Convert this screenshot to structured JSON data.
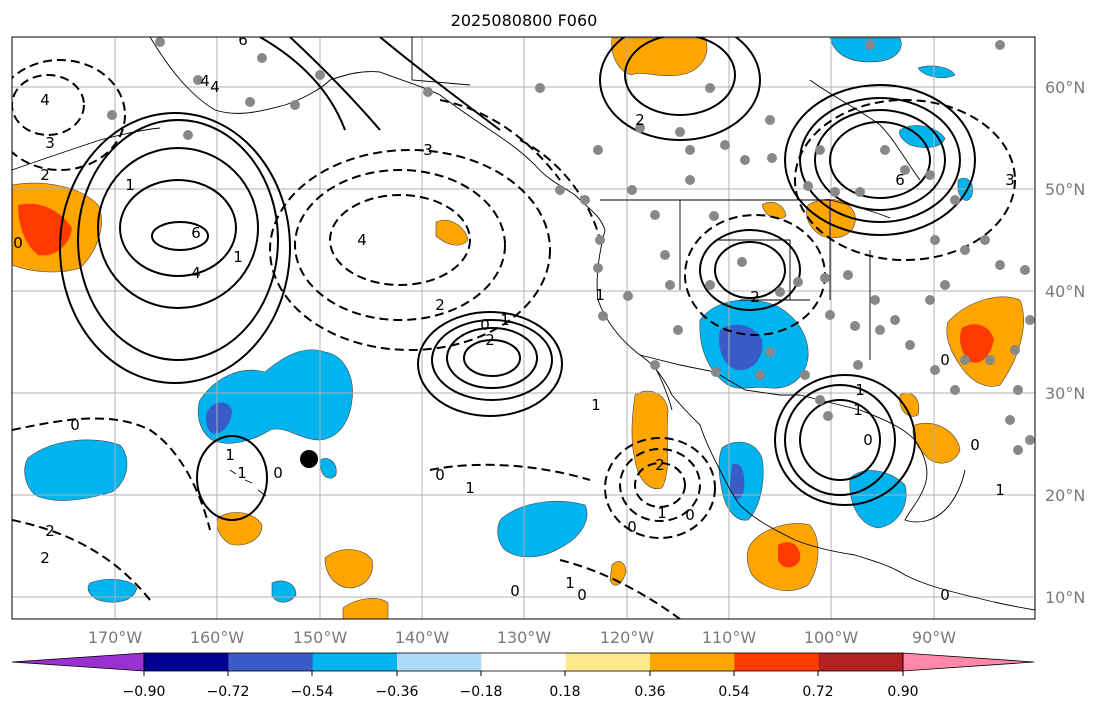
{
  "title": "2025080800 F060",
  "map": {
    "lat_labels": [
      "60°N",
      "50°N",
      "40°N",
      "30°N",
      "20°N",
      "10°N"
    ],
    "lon_labels": [
      "170°W",
      "160°W",
      "150°W",
      "140°W",
      "130°W",
      "120°W",
      "110°W",
      "100°W",
      "90°W"
    ],
    "contour_labels": [
      "6",
      "4",
      "3",
      "2",
      "1",
      "0",
      "6",
      "4",
      "1",
      "4",
      "3",
      "4",
      "2",
      "0",
      "2",
      "1",
      "0",
      "1",
      "2",
      "1",
      "2",
      "0",
      "1",
      "0",
      "2",
      "1",
      "0",
      "1",
      "1",
      "0",
      "0",
      "3",
      "6",
      "0",
      "1",
      "1",
      "0",
      "2",
      "2",
      "1",
      "1",
      "0",
      "0",
      "0",
      "4"
    ],
    "colors": {
      "neg_strong": "#3a5cc8",
      "neg_medium": "#00b4f0",
      "pos_medium": "#ffa500",
      "pos_strong": "#ff3a00",
      "station_marker": "#888888",
      "grid": "#b0b0b0"
    }
  },
  "colorbar": {
    "ticks": [
      "−0.90",
      "−0.72",
      "−0.54",
      "−0.36",
      "−0.18",
      "0.18",
      "0.36",
      "0.54",
      "0.72",
      "0.90"
    ],
    "segments": [
      "#9b30d0",
      "#000090",
      "#3a5cc8",
      "#00b4f0",
      "#aedcf8",
      "#ffffff",
      "#fde98a",
      "#ffa500",
      "#ff3a00",
      "#b22222",
      "#ff88aa"
    ]
  }
}
